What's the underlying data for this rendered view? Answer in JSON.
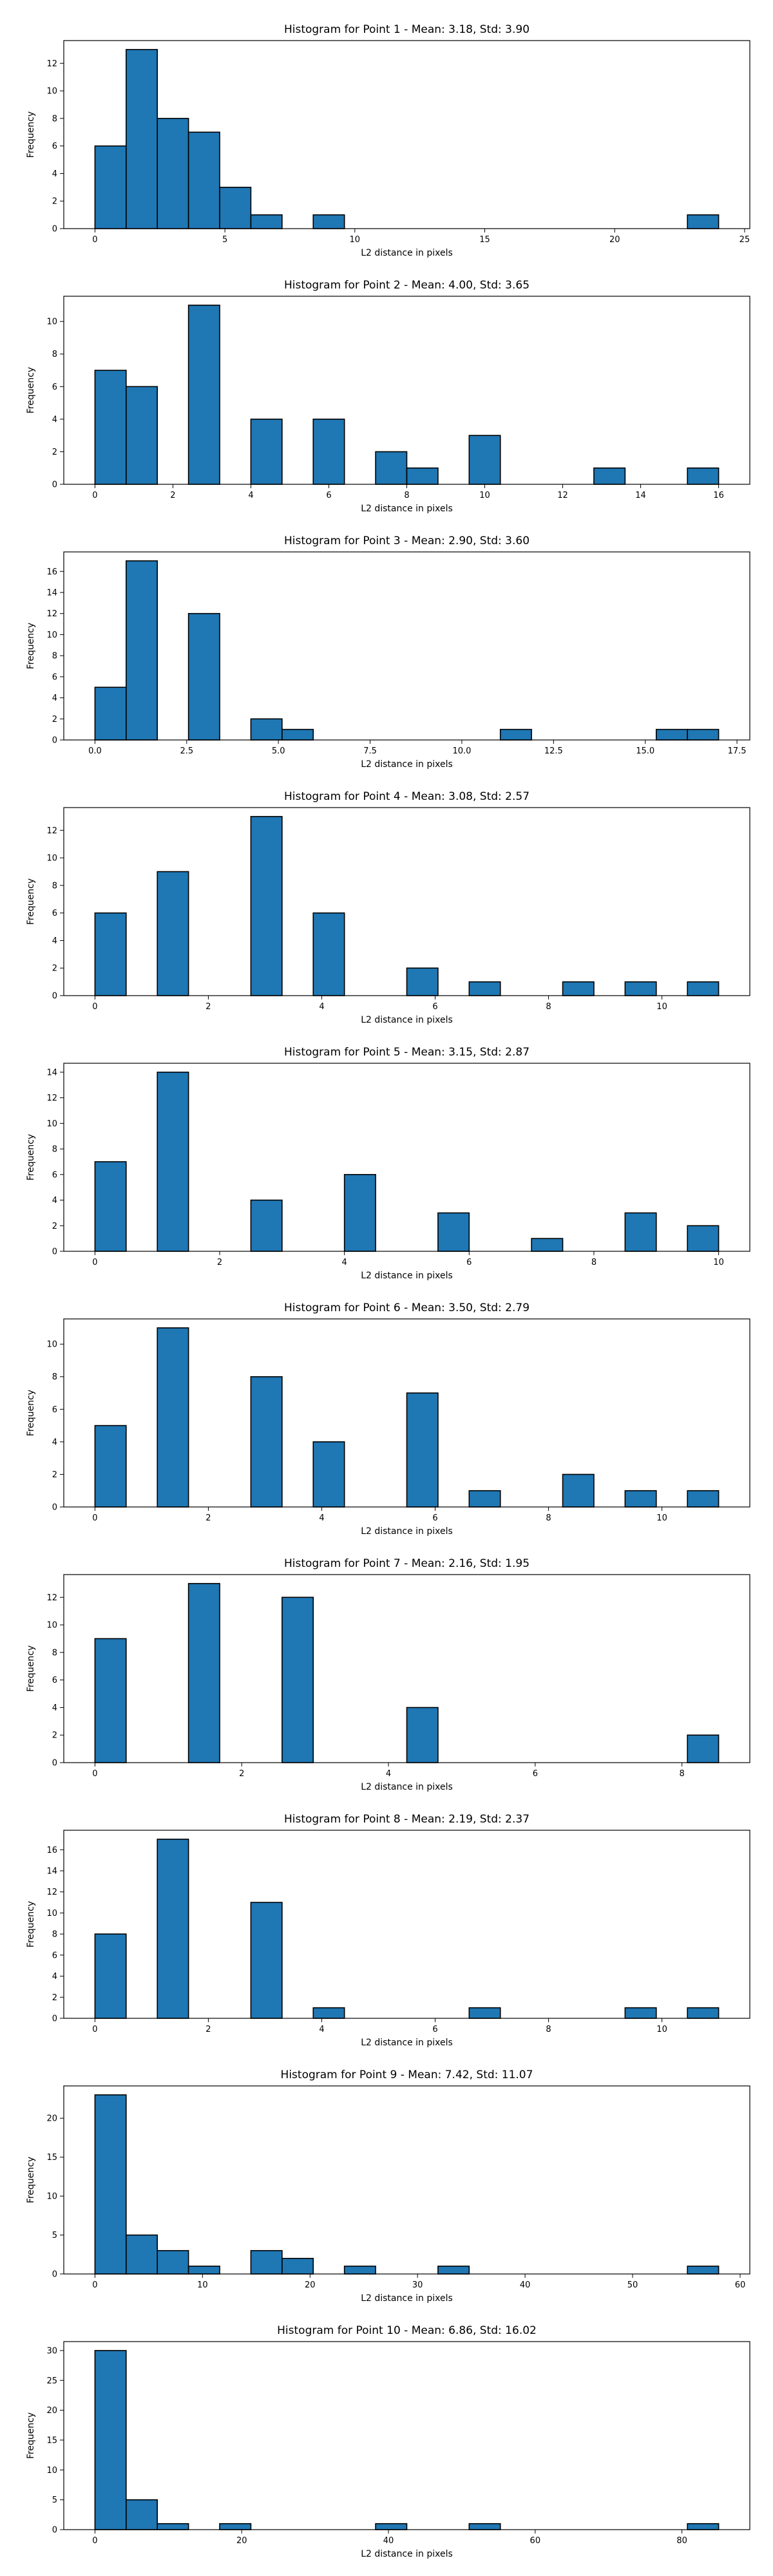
{
  "figure": {
    "bar_color": "#1f77b4",
    "edge_color": "#000000"
  },
  "chart_data": [
    {
      "type": "bar",
      "title": "Histogram for Point 1 - Mean: 3.18, Std: 3.90",
      "xlabel": "L2 distance in pixels",
      "ylabel": "Frequency",
      "xlim": [
        -1.2,
        25.2
      ],
      "ylim": [
        0,
        13.65
      ],
      "xticks": [
        0,
        5,
        10,
        15,
        20,
        25
      ],
      "xtick_labels": [
        "0",
        "5",
        "10",
        "15",
        "20",
        "25"
      ],
      "yticks": [
        0,
        2,
        4,
        6,
        8,
        10,
        12
      ],
      "ytick_labels": [
        "0",
        "2",
        "4",
        "6",
        "8",
        "10",
        "12"
      ],
      "bin_width": 1.2,
      "bins": [
        {
          "x0": 0,
          "count": 6
        },
        {
          "x0": 1.2,
          "count": 13
        },
        {
          "x0": 2.4,
          "count": 8
        },
        {
          "x0": 3.6,
          "count": 7
        },
        {
          "x0": 4.8,
          "count": 3
        },
        {
          "x0": 6.0,
          "count": 1
        },
        {
          "x0": 8.4,
          "count": 1
        },
        {
          "x0": 22.8,
          "count": 1
        }
      ]
    },
    {
      "type": "bar",
      "title": "Histogram for Point 2 - Mean: 4.00, Std: 3.65",
      "xlabel": "L2 distance in pixels",
      "ylabel": "Frequency",
      "xlim": [
        -0.8,
        16.8
      ],
      "ylim": [
        0,
        11.55
      ],
      "xticks": [
        0,
        2,
        4,
        6,
        8,
        10,
        12,
        14,
        16
      ],
      "xtick_labels": [
        "0",
        "2",
        "4",
        "6",
        "8",
        "10",
        "12",
        "14",
        "16"
      ],
      "yticks": [
        0,
        2,
        4,
        6,
        8,
        10
      ],
      "ytick_labels": [
        "0",
        "2",
        "4",
        "6",
        "8",
        "10"
      ],
      "bin_width": 0.8,
      "bins": [
        {
          "x0": 0,
          "count": 7
        },
        {
          "x0": 0.8,
          "count": 6
        },
        {
          "x0": 2.4,
          "count": 11
        },
        {
          "x0": 4.0,
          "count": 4
        },
        {
          "x0": 5.6,
          "count": 4
        },
        {
          "x0": 7.2,
          "count": 2
        },
        {
          "x0": 8.0,
          "count": 1
        },
        {
          "x0": 9.6,
          "count": 3
        },
        {
          "x0": 12.8,
          "count": 1
        },
        {
          "x0": 15.2,
          "count": 1
        }
      ]
    },
    {
      "type": "bar",
      "title": "Histogram for Point 3 - Mean: 2.90, Std: 3.60",
      "xlabel": "L2 distance in pixels",
      "ylabel": "Frequency",
      "xlim": [
        -0.85,
        17.85
      ],
      "ylim": [
        0,
        17.85
      ],
      "xticks": [
        0,
        2.5,
        5,
        7.5,
        10,
        12.5,
        15,
        17.5
      ],
      "xtick_labels": [
        "0.0",
        "2.5",
        "5.0",
        "7.5",
        "10.0",
        "12.5",
        "15.0",
        "17.5"
      ],
      "yticks": [
        0,
        2,
        4,
        6,
        8,
        10,
        12,
        14,
        16
      ],
      "ytick_labels": [
        "0",
        "2",
        "4",
        "6",
        "8",
        "10",
        "12",
        "14",
        "16"
      ],
      "bin_width": 0.85,
      "bins": [
        {
          "x0": 0,
          "count": 5
        },
        {
          "x0": 0.85,
          "count": 17
        },
        {
          "x0": 2.55,
          "count": 12
        },
        {
          "x0": 4.25,
          "count": 2
        },
        {
          "x0": 5.1,
          "count": 1
        },
        {
          "x0": 11.05,
          "count": 1
        },
        {
          "x0": 15.3,
          "count": 1
        },
        {
          "x0": 16.15,
          "count": 1
        }
      ]
    },
    {
      "type": "bar",
      "title": "Histogram for Point 4 - Mean: 3.08, Std: 2.57",
      "xlabel": "L2 distance in pixels",
      "ylabel": "Frequency",
      "xlim": [
        -0.55,
        11.55
      ],
      "ylim": [
        0,
        13.65
      ],
      "xticks": [
        0,
        2,
        4,
        6,
        8,
        10
      ],
      "xtick_labels": [
        "0",
        "2",
        "4",
        "6",
        "8",
        "10"
      ],
      "yticks": [
        0,
        2,
        4,
        6,
        8,
        10,
        12
      ],
      "ytick_labels": [
        "0",
        "2",
        "4",
        "6",
        "8",
        "10",
        "12"
      ],
      "bin_width": 0.55,
      "bins": [
        {
          "x0": 0,
          "count": 6
        },
        {
          "x0": 1.1,
          "count": 9
        },
        {
          "x0": 2.75,
          "count": 13
        },
        {
          "x0": 3.85,
          "count": 6
        },
        {
          "x0": 5.5,
          "count": 2
        },
        {
          "x0": 6.6,
          "count": 1
        },
        {
          "x0": 8.25,
          "count": 1
        },
        {
          "x0": 9.35,
          "count": 1
        },
        {
          "x0": 10.45,
          "count": 1
        }
      ]
    },
    {
      "type": "bar",
      "title": "Histogram for Point 5 - Mean: 3.15, Std: 2.87",
      "xlabel": "L2 distance in pixels",
      "ylabel": "Frequency",
      "xlim": [
        -0.5,
        10.5
      ],
      "ylim": [
        0,
        14.7
      ],
      "xticks": [
        0,
        2,
        4,
        6,
        8,
        10
      ],
      "xtick_labels": [
        "0",
        "2",
        "4",
        "6",
        "8",
        "10"
      ],
      "yticks": [
        0,
        2,
        4,
        6,
        8,
        10,
        12,
        14
      ],
      "ytick_labels": [
        "0",
        "2",
        "4",
        "6",
        "8",
        "10",
        "12",
        "14"
      ],
      "bin_width": 0.5,
      "bins": [
        {
          "x0": 0,
          "count": 7
        },
        {
          "x0": 1.0,
          "count": 14
        },
        {
          "x0": 2.5,
          "count": 4
        },
        {
          "x0": 4.0,
          "count": 6
        },
        {
          "x0": 5.5,
          "count": 3
        },
        {
          "x0": 7.0,
          "count": 1
        },
        {
          "x0": 8.5,
          "count": 3
        },
        {
          "x0": 9.5,
          "count": 2
        }
      ]
    },
    {
      "type": "bar",
      "title": "Histogram for Point 6 - Mean: 3.50, Std: 2.79",
      "xlabel": "L2 distance in pixels",
      "ylabel": "Frequency",
      "xlim": [
        -0.55,
        11.55
      ],
      "ylim": [
        0,
        11.55
      ],
      "xticks": [
        0,
        2,
        4,
        6,
        8,
        10
      ],
      "xtick_labels": [
        "0",
        "2",
        "4",
        "6",
        "8",
        "10"
      ],
      "yticks": [
        0,
        2,
        4,
        6,
        8,
        10
      ],
      "ytick_labels": [
        "0",
        "2",
        "4",
        "6",
        "8",
        "10"
      ],
      "bin_width": 0.55,
      "bins": [
        {
          "x0": 0,
          "count": 5
        },
        {
          "x0": 1.1,
          "count": 11
        },
        {
          "x0": 2.75,
          "count": 8
        },
        {
          "x0": 3.85,
          "count": 4
        },
        {
          "x0": 5.5,
          "count": 7
        },
        {
          "x0": 6.6,
          "count": 1
        },
        {
          "x0": 8.25,
          "count": 2
        },
        {
          "x0": 9.35,
          "count": 1
        },
        {
          "x0": 10.45,
          "count": 1
        }
      ]
    },
    {
      "type": "bar",
      "title": "Histogram for Point 7 - Mean: 2.16, Std: 1.95",
      "xlabel": "L2 distance in pixels",
      "ylabel": "Frequency",
      "xlim": [
        -0.425,
        8.925
      ],
      "ylim": [
        0,
        13.65
      ],
      "xticks": [
        0,
        2,
        4,
        6,
        8
      ],
      "xtick_labels": [
        "0",
        "2",
        "4",
        "6",
        "8"
      ],
      "yticks": [
        0,
        2,
        4,
        6,
        8,
        10,
        12
      ],
      "ytick_labels": [
        "0",
        "2",
        "4",
        "6",
        "8",
        "10",
        "12"
      ],
      "bin_width": 0.425,
      "bins": [
        {
          "x0": 0,
          "count": 9
        },
        {
          "x0": 1.275,
          "count": 13
        },
        {
          "x0": 2.55,
          "count": 12
        },
        {
          "x0": 4.25,
          "count": 4
        },
        {
          "x0": 8.075,
          "count": 2
        }
      ]
    },
    {
      "type": "bar",
      "title": "Histogram for Point 8 - Mean: 2.19, Std: 2.37",
      "xlabel": "L2 distance in pixels",
      "ylabel": "Frequency",
      "xlim": [
        -0.55,
        11.55
      ],
      "ylim": [
        0,
        17.85
      ],
      "xticks": [
        0,
        2,
        4,
        6,
        8,
        10
      ],
      "xtick_labels": [
        "0",
        "2",
        "4",
        "6",
        "8",
        "10"
      ],
      "yticks": [
        0,
        2,
        4,
        6,
        8,
        10,
        12,
        14,
        16
      ],
      "ytick_labels": [
        "0",
        "2",
        "4",
        "6",
        "8",
        "10",
        "12",
        "14",
        "16"
      ],
      "bin_width": 0.55,
      "bins": [
        {
          "x0": 0,
          "count": 8
        },
        {
          "x0": 1.1,
          "count": 17
        },
        {
          "x0": 2.75,
          "count": 11
        },
        {
          "x0": 3.85,
          "count": 1
        },
        {
          "x0": 6.6,
          "count": 1
        },
        {
          "x0": 9.35,
          "count": 1
        },
        {
          "x0": 10.45,
          "count": 1
        }
      ]
    },
    {
      "type": "bar",
      "title": "Histogram for Point 9 - Mean: 7.42, Std: 11.07",
      "xlabel": "L2 distance in pixels",
      "ylabel": "Frequency",
      "xlim": [
        -2.9,
        60.9
      ],
      "ylim": [
        0,
        24.15
      ],
      "xticks": [
        0,
        10,
        20,
        30,
        40,
        50,
        60
      ],
      "xtick_labels": [
        "0",
        "10",
        "20",
        "30",
        "40",
        "50",
        "60"
      ],
      "yticks": [
        0,
        5,
        10,
        15,
        20
      ],
      "ytick_labels": [
        "0",
        "5",
        "10",
        "15",
        "20"
      ],
      "bin_width": 2.9,
      "bins": [
        {
          "x0": 0,
          "count": 23
        },
        {
          "x0": 2.9,
          "count": 5
        },
        {
          "x0": 5.8,
          "count": 3
        },
        {
          "x0": 8.7,
          "count": 1
        },
        {
          "x0": 14.5,
          "count": 3
        },
        {
          "x0": 17.4,
          "count": 2
        },
        {
          "x0": 23.2,
          "count": 1
        },
        {
          "x0": 31.9,
          "count": 1
        },
        {
          "x0": 55.1,
          "count": 1
        }
      ]
    },
    {
      "type": "bar",
      "title": "Histogram for Point 10 - Mean: 6.86, Std: 16.02",
      "xlabel": "L2 distance in pixels",
      "ylabel": "Frequency",
      "xlim": [
        -4.25,
        89.25
      ],
      "ylim": [
        0,
        31.5
      ],
      "xticks": [
        0,
        20,
        40,
        60,
        80
      ],
      "xtick_labels": [
        "0",
        "20",
        "40",
        "60",
        "80"
      ],
      "yticks": [
        0,
        5,
        10,
        15,
        20,
        25,
        30
      ],
      "ytick_labels": [
        "0",
        "5",
        "10",
        "15",
        "20",
        "25",
        "30"
      ],
      "bin_width": 4.25,
      "bins": [
        {
          "x0": 0,
          "count": 30
        },
        {
          "x0": 4.25,
          "count": 5
        },
        {
          "x0": 8.5,
          "count": 1
        },
        {
          "x0": 17.0,
          "count": 1
        },
        {
          "x0": 38.25,
          "count": 1
        },
        {
          "x0": 51.0,
          "count": 1
        },
        {
          "x0": 80.75,
          "count": 1
        }
      ]
    }
  ]
}
